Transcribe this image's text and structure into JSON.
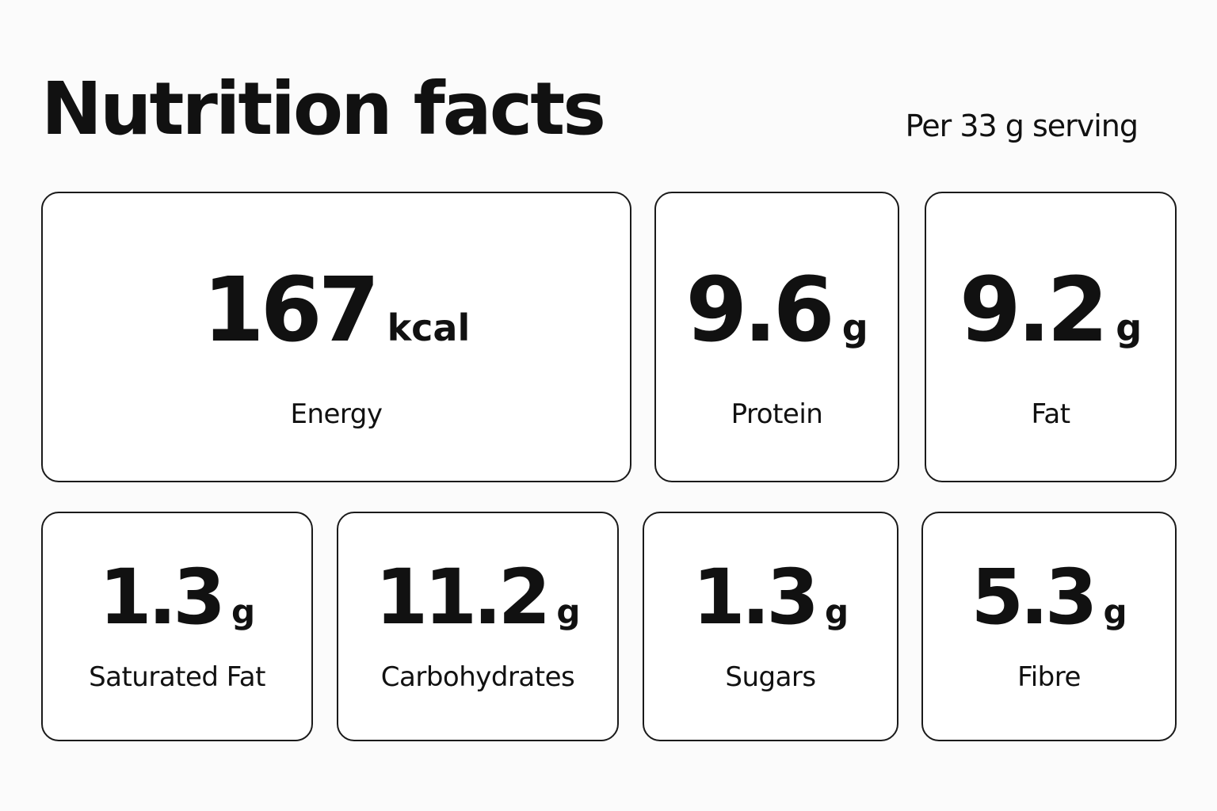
{
  "header": {
    "title": "Nutrition facts",
    "serving": "Per 33 g serving"
  },
  "cards": [
    {
      "value": 167,
      "unit": "kcal",
      "label": "Energy"
    },
    {
      "value": 9.6,
      "unit": "g",
      "label": "Protein"
    },
    {
      "value": 9.2,
      "unit": "g",
      "label": "Fat"
    },
    {
      "value": 1.3,
      "unit": "g",
      "label": "Saturated Fat"
    },
    {
      "value": 11.2,
      "unit": "g",
      "label": "Carbohydrates"
    },
    {
      "value": 1.3,
      "unit": "g",
      "label": "Sugars"
    },
    {
      "value": 5.3,
      "unit": "g",
      "label": "Fibre"
    }
  ]
}
